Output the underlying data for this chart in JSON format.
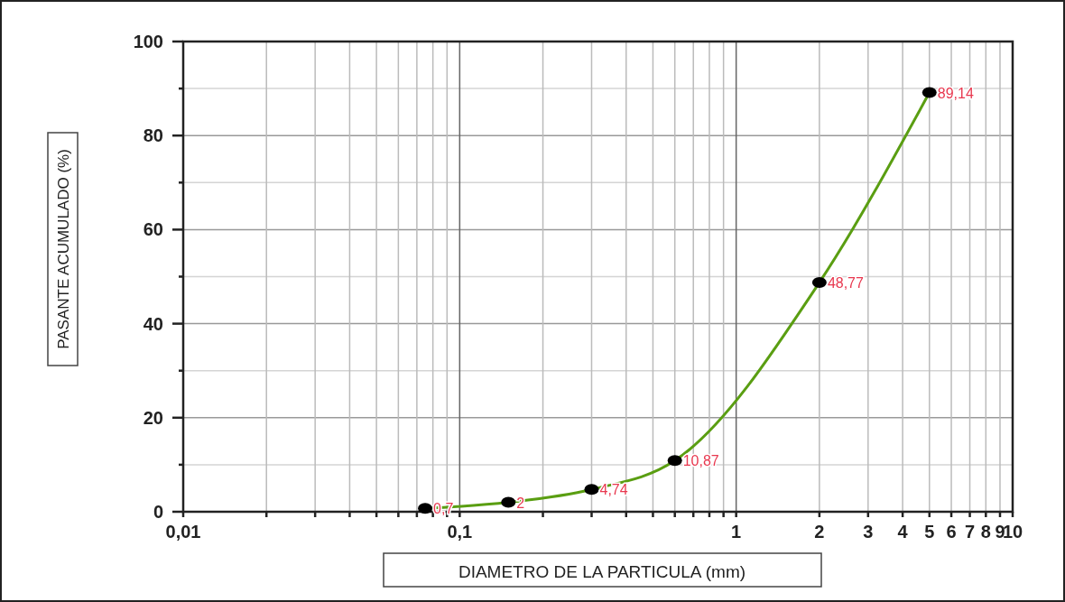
{
  "chart_data": {
    "type": "line",
    "xlabel": "DIAMETRO DE LA PARTICULA (mm)",
    "ylabel": "PASANTE ACUMULADO (%)",
    "log": "x",
    "grid": true,
    "xlim": [
      0.01,
      10
    ],
    "xticks": [
      {
        "value": 0.01,
        "label": "0,01"
      },
      {
        "value": 0.02,
        "label": null
      },
      {
        "value": 0.03,
        "label": null
      },
      {
        "value": 0.04,
        "label": null
      },
      {
        "value": 0.05,
        "label": null
      },
      {
        "value": 0.06,
        "label": null
      },
      {
        "value": 0.07,
        "label": null
      },
      {
        "value": 0.08,
        "label": null
      },
      {
        "value": 0.09,
        "label": null
      },
      {
        "value": 0.1,
        "label": "0,1"
      },
      {
        "value": 0.2,
        "label": null
      },
      {
        "value": 0.3,
        "label": null
      },
      {
        "value": 0.4,
        "label": null
      },
      {
        "value": 0.5,
        "label": null
      },
      {
        "value": 0.6,
        "label": null
      },
      {
        "value": 0.7,
        "label": null
      },
      {
        "value": 0.8,
        "label": null
      },
      {
        "value": 0.9,
        "label": null
      },
      1,
      2,
      3,
      4,
      5,
      6,
      7,
      8,
      9,
      10
    ],
    "ylim": [
      0,
      100
    ],
    "yticks": [
      0,
      {
        "value": 10,
        "label": null
      },
      20,
      {
        "value": 30,
        "label": null
      },
      40,
      {
        "value": 50,
        "label": null
      },
      60,
      {
        "value": 70,
        "label": null
      },
      80,
      {
        "value": 90,
        "label": null
      },
      100
    ],
    "series": [
      {
        "color": "#5a9e12",
        "marker": "none",
        "x": [
          0.075,
          0.15,
          0.3,
          0.6,
          2,
          5
        ],
        "values": [
          0.7,
          2,
          4.74,
          10.87,
          48.77,
          89.14
        ]
      },
      {
        "type": "scatter",
        "color": "#000000",
        "marker": "circle",
        "x": [
          0.075,
          0.15,
          0.3,
          0.6,
          2,
          5
        ],
        "values": [
          0.7,
          2,
          4.74,
          10.87,
          48.77,
          89.14
        ],
        "value_labels": [
          "0,7",
          "2",
          "4,74",
          "10,87",
          "48,77",
          "89,14"
        ]
      }
    ]
  }
}
